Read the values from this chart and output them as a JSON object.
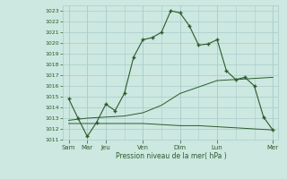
{
  "xlabel": "Pression niveau de la mer( hPa )",
  "background_color": "#cce8e0",
  "grid_color": "#a8cccc",
  "line_color": "#2d5a2d",
  "ylim": [
    1011,
    1023.5
  ],
  "yticks": [
    1011,
    1012,
    1013,
    1014,
    1015,
    1016,
    1017,
    1018,
    1019,
    1020,
    1021,
    1022,
    1023
  ],
  "major_xtick_positions": [
    0,
    1,
    2,
    4,
    6,
    8,
    11
  ],
  "major_xtick_labels": [
    "Sam",
    "Mar",
    "Jeu",
    "Ven",
    "Dim",
    "Lun",
    "Mer"
  ],
  "line1_x": [
    0,
    0.5,
    1,
    1.5,
    2,
    2.5,
    3,
    3.5,
    4,
    4.5,
    5,
    5.5,
    6,
    6.5,
    7,
    7.5,
    8,
    8.5,
    9,
    9.5,
    10,
    10.5,
    11
  ],
  "line1_y": [
    1014.8,
    1013.0,
    1011.3,
    1012.6,
    1014.3,
    1013.7,
    1015.3,
    1018.7,
    1020.3,
    1020.5,
    1021.0,
    1023.0,
    1022.8,
    1021.6,
    1019.8,
    1019.9,
    1020.3,
    1017.4,
    1016.6,
    1016.8,
    1016.0,
    1013.1,
    1011.9
  ],
  "line2_x": [
    0,
    1,
    2,
    3,
    4,
    5,
    6,
    7,
    8,
    9,
    10,
    11
  ],
  "line2_y": [
    1012.5,
    1012.5,
    1012.5,
    1012.5,
    1012.5,
    1012.4,
    1012.3,
    1012.3,
    1012.2,
    1012.1,
    1012.0,
    1011.9
  ],
  "line3_x": [
    0,
    1,
    2,
    3,
    4,
    5,
    6,
    7,
    8,
    9,
    10,
    11
  ],
  "line3_y": [
    1012.8,
    1013.0,
    1013.1,
    1013.2,
    1013.5,
    1014.2,
    1015.3,
    1015.9,
    1016.5,
    1016.6,
    1016.7,
    1016.8
  ]
}
